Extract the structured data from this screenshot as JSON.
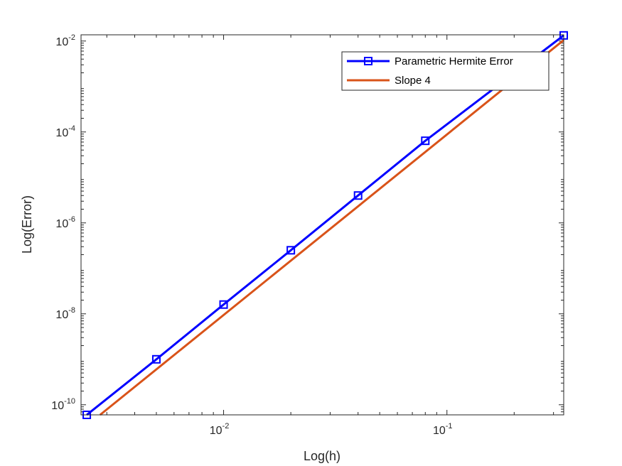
{
  "chart_data": {
    "type": "line",
    "title": "",
    "xlabel": "Log(h)",
    "ylabel": "Log(Error)",
    "xscale": "log",
    "yscale": "log",
    "xlim": [
      0.0023,
      0.3333
    ],
    "ylim": [
      6e-11,
      0.0137
    ],
    "xticks": [
      {
        "value": 0.01,
        "base": "10",
        "exp": "-2"
      },
      {
        "value": 0.1,
        "base": "10",
        "exp": "-1"
      }
    ],
    "yticks": [
      {
        "value": 1e-10,
        "base": "10",
        "exp": "-10"
      },
      {
        "value": 1e-08,
        "base": "10",
        "exp": "-8"
      },
      {
        "value": 1e-06,
        "base": "10",
        "exp": "-6"
      },
      {
        "value": 0.0001,
        "base": "10",
        "exp": "-4"
      },
      {
        "value": 0.01,
        "base": "10",
        "exp": "-2"
      }
    ],
    "grid": false,
    "legend_position": "top-right",
    "series": [
      {
        "name": "Parametric Hermite Error",
        "color": "#0000ff",
        "marker": "square",
        "x": [
          0.00244,
          0.005,
          0.01,
          0.02,
          0.04,
          0.08,
          0.3333
        ],
        "y": [
          6e-11,
          1e-09,
          1.6e-08,
          2.5e-07,
          4e-06,
          6.4e-05,
          0.0133
        ]
      },
      {
        "name": "Slope 4",
        "color": "#d95319",
        "marker": "none",
        "x": [
          0.0028,
          0.3333
        ],
        "y": [
          6e-11,
          0.0105
        ]
      }
    ]
  }
}
